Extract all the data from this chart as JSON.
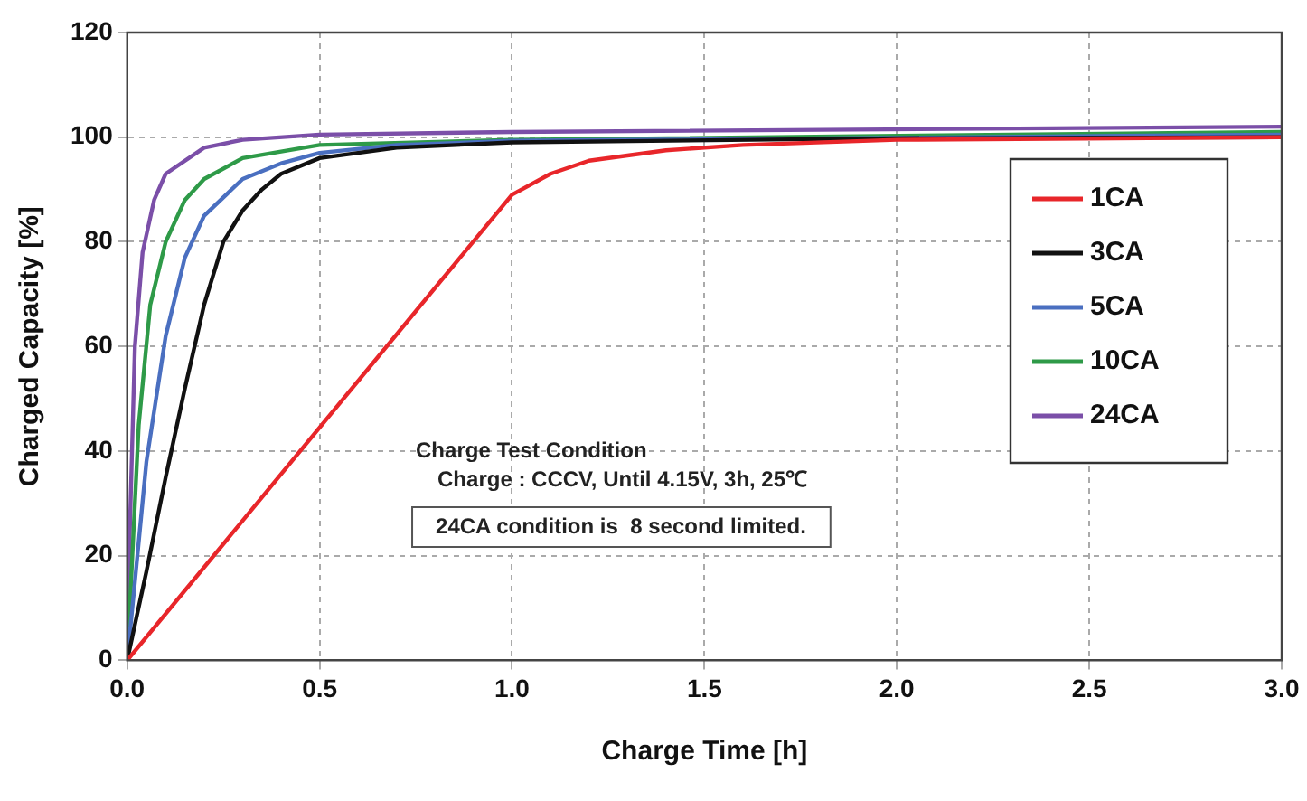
{
  "chart_data": {
    "type": "line",
    "xlabel": "Charge Time [h]",
    "ylabel": "Charged Capacity [%]",
    "xlim": [
      0,
      3
    ],
    "xticks": [
      {
        "value": 0,
        "label": "0.0"
      },
      {
        "value": 0.5,
        "label": "0.5"
      },
      {
        "value": 1,
        "label": "1.0"
      },
      {
        "value": 1.5,
        "label": "1.5"
      },
      {
        "value": 2,
        "label": "2.0"
      },
      {
        "value": 2.5,
        "label": "2.5"
      },
      {
        "value": 3,
        "label": "3.0"
      }
    ],
    "ylim": [
      0,
      120
    ],
    "yticks": [
      0,
      20,
      40,
      60,
      80,
      100,
      120
    ],
    "grid": true,
    "legend": "right",
    "marker": "none",
    "line_style": "solid",
    "annotations": [
      "Charge Test Condition",
      "Charge : CCCV, Until 4.15V, 3h, 25℃",
      "24CA condition is  8 second limited."
    ],
    "series": [
      {
        "name": "1CA",
        "color": "#e8262a",
        "x": [
          0,
          1.0,
          1.1,
          1.2,
          1.4,
          1.6,
          2.0,
          3.0
        ],
        "values": [
          0,
          89,
          93,
          95.5,
          97.5,
          98.5,
          99.5,
          100
        ]
      },
      {
        "name": "3CA",
        "color": "#111111",
        "x": [
          0,
          0.05,
          0.1,
          0.15,
          0.2,
          0.25,
          0.3,
          0.35,
          0.4,
          0.5,
          0.7,
          1.0,
          2.0,
          3.0
        ],
        "values": [
          0,
          17,
          35,
          52,
          68,
          80,
          86,
          90,
          93,
          96,
          98,
          99,
          99.8,
          100
        ]
      },
      {
        "name": "5CA",
        "color": "#4a6fc0",
        "x": [
          0,
          0.02,
          0.05,
          0.1,
          0.15,
          0.2,
          0.3,
          0.4,
          0.5,
          0.7,
          1.0,
          3.0
        ],
        "values": [
          0,
          15,
          38,
          62,
          77,
          85,
          92,
          95,
          97,
          98.5,
          99.3,
          100.5
        ]
      },
      {
        "name": "10CA",
        "color": "#2e9a48",
        "x": [
          0,
          0.01,
          0.03,
          0.06,
          0.1,
          0.15,
          0.2,
          0.3,
          0.5,
          1.0,
          3.0
        ],
        "values": [
          0,
          15,
          45,
          68,
          80,
          88,
          92,
          96,
          98.5,
          99.5,
          101
        ]
      },
      {
        "name": "24CA",
        "color": "#7b4fa8",
        "x": [
          0,
          0.005,
          0.02,
          0.04,
          0.07,
          0.1,
          0.2,
          0.3,
          0.5,
          1.0,
          3.0
        ],
        "values": [
          0,
          20,
          60,
          78,
          88,
          93,
          98,
          99.5,
          100.5,
          101,
          102
        ]
      }
    ]
  }
}
